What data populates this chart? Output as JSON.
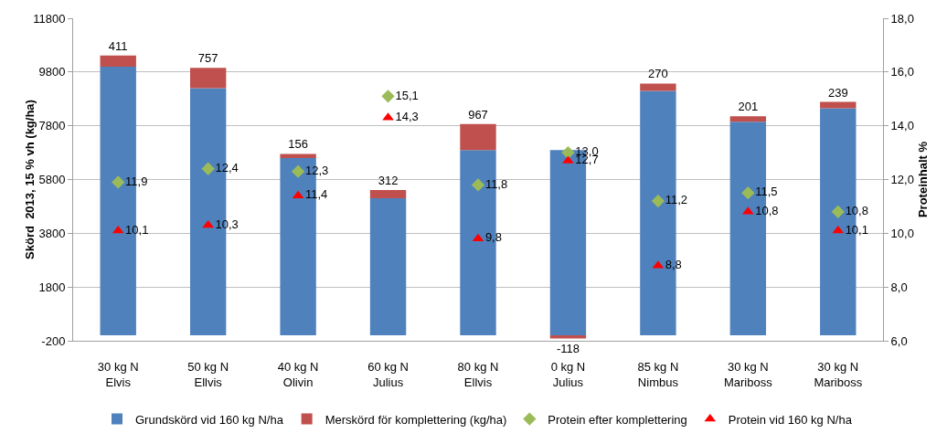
{
  "chart_data": {
    "type": "bar",
    "stacked": true,
    "categories": [
      "30 kg N\nElvis",
      "50 kg N\nEllvis",
      "40 kg N\nOlivin",
      "60 kg N\nJulius",
      "80 kg N\nEllvis",
      "0 kg N\nJulius",
      "85 kg N\nNimbus",
      "30 kg N\nMariboss",
      "30 kg N\nMariboss"
    ],
    "ylabel": "Skörd  2013, 15 % vh (kg/ha)",
    "y2label": "Proteinhalt %",
    "ylim": [
      -200,
      11800
    ],
    "yticks": [
      -200,
      1800,
      3800,
      5800,
      7800,
      9800,
      11800
    ],
    "y2lim": [
      6,
      18
    ],
    "y2ticks": [
      {
        "value": 6,
        "label": "6,0"
      },
      {
        "value": 8,
        "label": "8,0"
      },
      {
        "value": 10,
        "label": "10,0"
      },
      {
        "value": 12,
        "label": "12,0"
      },
      {
        "value": 14,
        "label": "14,0"
      },
      {
        "value": 16,
        "label": "16,0"
      },
      {
        "value": 18,
        "label": "18,0"
      }
    ],
    "grid": "y",
    "legend": "bottom",
    "series": [
      {
        "name": "Grundskörd vid 160 kg N/ha",
        "color": "#4f81bd",
        "values": [
          10000,
          9200,
          6600,
          5100,
          6900,
          6900,
          9100,
          7950,
          8450
        ]
      },
      {
        "name": "Merskörd för komplettering (kg/ha)",
        "color": "#c0504d",
        "values": [
          411,
          757,
          156,
          312,
          967,
          -118,
          270,
          201,
          239
        ],
        "value_labels": [
          "411",
          "757",
          "156",
          "312",
          "967",
          "-118",
          "270",
          "201",
          "239"
        ]
      },
      {
        "name": "Protein efter komplettering",
        "type": "scatter",
        "axis": "y2",
        "marker": "diamond",
        "color": "#9bbb59",
        "values": [
          11.9,
          12.4,
          12.3,
          15.1,
          11.8,
          13.0,
          11.2,
          11.5,
          10.8
        ],
        "value_labels": [
          "11,9",
          "12,4",
          "12,3",
          "15,1",
          "11,8",
          "13,0",
          "11,2",
          "11,5",
          "10,8"
        ]
      },
      {
        "name": "Protein vid 160 kg N/ha",
        "type": "scatter",
        "axis": "y2",
        "marker": "triangle",
        "color": "#ff0000",
        "values": [
          10.1,
          10.3,
          11.4,
          14.3,
          9.8,
          12.7,
          8.8,
          10.8,
          10.1
        ],
        "value_labels": [
          "10,1",
          "10,3",
          "11,4",
          "14,3",
          "9,8",
          "12,7",
          "8,8",
          "10,8",
          "10,1"
        ]
      }
    ]
  }
}
